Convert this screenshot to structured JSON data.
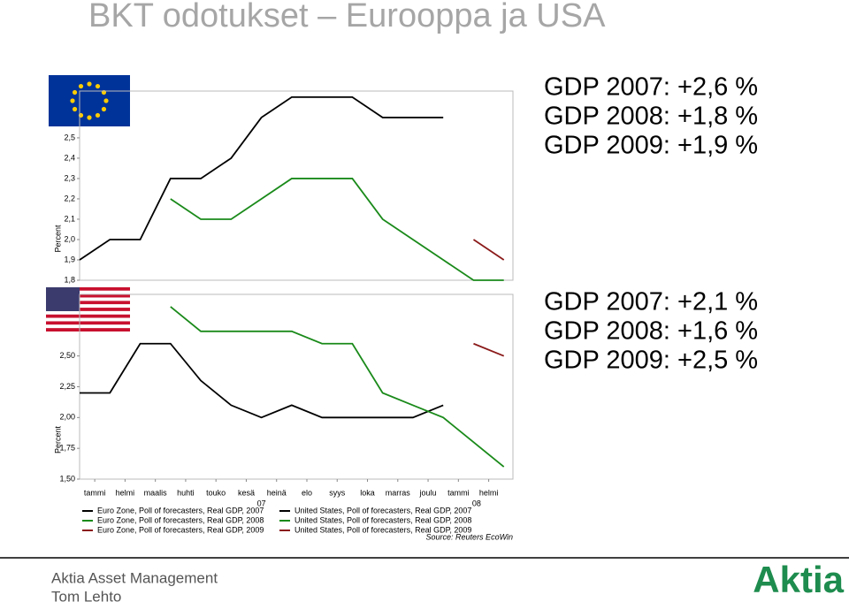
{
  "title": "BKT odotukset – Eurooppa ja USA",
  "chart_data": [
    {
      "type": "line",
      "y_label": "Percent",
      "xlim": [
        0,
        14.3
      ],
      "ylim": [
        1.8,
        2.73
      ],
      "yticks": [
        {
          "value": 1.8,
          "label": "1,8"
        },
        {
          "value": 1.9,
          "label": "1,9"
        },
        {
          "value": 2.0,
          "label": "2,0"
        },
        {
          "value": 2.1,
          "label": "2,1"
        },
        {
          "value": 2.2,
          "label": "2,2"
        },
        {
          "value": 2.3,
          "label": "2,3"
        },
        {
          "value": 2.4,
          "label": "2,4"
        },
        {
          "value": 2.5,
          "label": "2,5"
        }
      ],
      "grid": false,
      "x": [
        0,
        1,
        2,
        3,
        4,
        5,
        6,
        7,
        8,
        9,
        10,
        11,
        12,
        13,
        14
      ],
      "series": [
        {
          "name": "Euro Zone, Poll of forecasters, Real GDP, 2007",
          "color": "#000000",
          "values": [
            1.9,
            2.0,
            2.0,
            2.3,
            2.3,
            2.4,
            2.6,
            2.7,
            2.7,
            2.7,
            2.6,
            2.6,
            2.6,
            null,
            null
          ]
        },
        {
          "name": "Euro Zone, Poll of forecasters, Real GDP, 2008",
          "color": "#1a8a1a",
          "values": [
            null,
            null,
            null,
            2.2,
            2.1,
            2.1,
            2.2,
            2.3,
            2.3,
            2.3,
            2.1,
            2.0,
            1.9,
            1.8,
            1.8
          ]
        },
        {
          "name": "Euro Zone, Poll of forecasters, Real GDP, 2009",
          "color": "#8b1a1a",
          "values": [
            null,
            null,
            null,
            null,
            null,
            null,
            null,
            null,
            null,
            null,
            null,
            null,
            null,
            2.0,
            1.9
          ]
        }
      ],
      "annotations": [
        "GDP 2007: +2,6 %",
        "GDP 2008: +1,8 %",
        "GDP 2009: +1,9 %"
      ]
    },
    {
      "type": "line",
      "y_label": "Percent",
      "xlim": [
        0,
        14.3
      ],
      "ylim": [
        1.5,
        3.0
      ],
      "yticks": [
        {
          "value": 1.5,
          "label": "1,50"
        },
        {
          "value": 1.75,
          "label": "1,75"
        },
        {
          "value": 2.0,
          "label": "2,00"
        },
        {
          "value": 2.25,
          "label": "2,25"
        },
        {
          "value": 2.5,
          "label": "2,50"
        }
      ],
      "xticks": [
        {
          "value": 0.5,
          "label": "tammi"
        },
        {
          "value": 1.5,
          "label": "helmi"
        },
        {
          "value": 2.5,
          "label": "maalis"
        },
        {
          "value": 3.5,
          "label": "huhti"
        },
        {
          "value": 4.5,
          "label": "touko"
        },
        {
          "value": 5.5,
          "label": "kesä"
        },
        {
          "value": 6.5,
          "label": "heinä"
        },
        {
          "value": 7.5,
          "label": "elo"
        },
        {
          "value": 8.5,
          "label": "syys"
        },
        {
          "value": 9.5,
          "label": "loka"
        },
        {
          "value": 10.5,
          "label": "marras"
        },
        {
          "value": 11.5,
          "label": "joulu"
        },
        {
          "value": 12.5,
          "label": "tammi"
        },
        {
          "value": 13.5,
          "label": "helmi"
        }
      ],
      "year_ticks": [
        {
          "value": 6,
          "label": "07"
        },
        {
          "value": 13.1,
          "label": "08"
        }
      ],
      "grid": false,
      "x": [
        0,
        1,
        2,
        3,
        4,
        5,
        6,
        7,
        8,
        9,
        10,
        11,
        12,
        13,
        14
      ],
      "series": [
        {
          "name": "United States, Poll of forecasters, Real GDP, 2007",
          "color": "#000000",
          "values": [
            2.2,
            2.2,
            2.6,
            2.6,
            2.3,
            2.1,
            2.0,
            2.1,
            2.0,
            2.0,
            2.0,
            2.0,
            2.1,
            null,
            null
          ]
        },
        {
          "name": "United States, Poll of forecasters, Real GDP, 2008",
          "color": "#1a8a1a",
          "values": [
            null,
            null,
            null,
            2.9,
            2.7,
            2.7,
            2.7,
            2.7,
            2.6,
            2.6,
            2.2,
            2.1,
            2.0,
            1.8,
            1.6
          ]
        },
        {
          "name": "United States, Poll of forecasters, Real GDP, 2009",
          "color": "#8b1a1a",
          "values": [
            null,
            null,
            null,
            null,
            null,
            null,
            null,
            null,
            null,
            null,
            null,
            null,
            null,
            2.6,
            2.5
          ]
        }
      ],
      "source": "Source: Reuters EcoWin",
      "annotations": [
        "GDP 2007: +2,1 %",
        "GDP 2008: +1,6 %",
        "GDP 2009: +2,5 %"
      ]
    }
  ],
  "footer": {
    "company": "Aktia Asset Management",
    "author": "Tom Lehto",
    "logo": "Aktia"
  }
}
